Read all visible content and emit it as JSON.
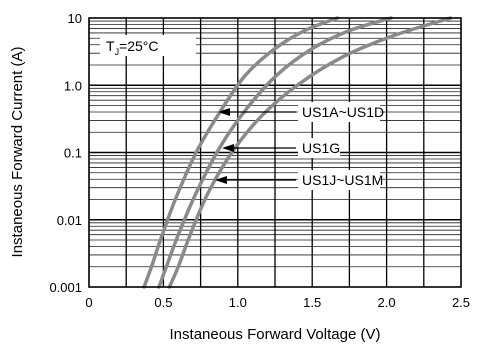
{
  "chart_data": {
    "type": "line",
    "xlabel": "Instaneous Forward Voltage (V)",
    "ylabel": "Instaneous Forward Current (A)",
    "xlim": [
      0,
      2.5
    ],
    "ylim": [
      0.001,
      10
    ],
    "yscale": "log",
    "grid": true,
    "x_ticks": [
      "0",
      "0.5",
      "1.0",
      "1.5",
      "2.0",
      "2.5"
    ],
    "y_ticks": [
      "0.001",
      "0.01",
      "0.1",
      "1.0",
      "10"
    ],
    "condition": {
      "prefix": "T",
      "sub": "J",
      "suffix": "=25°C"
    },
    "series": [
      {
        "name": "US1A~US1D",
        "x": [
          0.37,
          0.42,
          0.48,
          0.58,
          0.72,
          0.88,
          1.05,
          1.25,
          1.45,
          1.67
        ],
        "y": [
          0.001,
          0.002,
          0.005,
          0.02,
          0.1,
          0.4,
          1.4,
          3.5,
          6.5,
          10
        ]
      },
      {
        "name": "US1G",
        "x": [
          0.47,
          0.52,
          0.6,
          0.72,
          0.88,
          1.06,
          1.26,
          1.5,
          1.75,
          2.03
        ],
        "y": [
          0.001,
          0.002,
          0.006,
          0.025,
          0.12,
          0.45,
          1.4,
          3.5,
          6.5,
          10
        ]
      },
      {
        "name": "US1J~US1M",
        "x": [
          0.54,
          0.6,
          0.68,
          0.8,
          0.96,
          1.16,
          1.4,
          1.7,
          2.05,
          2.43
        ],
        "y": [
          0.001,
          0.002,
          0.006,
          0.025,
          0.1,
          0.35,
          1.0,
          2.6,
          5.5,
          10
        ]
      }
    ],
    "annotations": [
      {
        "text": "US1A~US1D",
        "target_series": 0
      },
      {
        "text": "US1G",
        "target_series": 1
      },
      {
        "text": "US1J~US1M",
        "target_series": 2
      }
    ]
  }
}
